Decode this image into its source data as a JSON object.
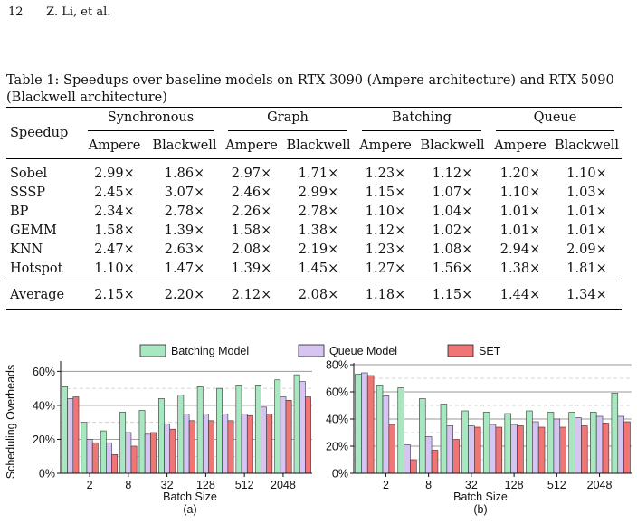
{
  "header": {
    "page_number": "12",
    "authors": "Z. Li, et al."
  },
  "table": {
    "caption": "Table 1: Speedups over baseline models on RTX 3090 (Ampere architecture) and RTX 5090 (Blackwell architecture)",
    "corner": "Speedup",
    "groups": [
      "Synchronous",
      "Graph",
      "Batching",
      "Queue"
    ],
    "subheaders": [
      "Ampere",
      "Blackwell",
      "Ampere",
      "Blackwell",
      "Ampere",
      "Blackwell",
      "Ampere",
      "Blackwell"
    ],
    "rows": [
      {
        "name": "Sobel",
        "values": [
          "2.99×",
          "1.86×",
          "2.97×",
          "1.71×",
          "1.23×",
          "1.12×",
          "1.20×",
          "1.10×"
        ]
      },
      {
        "name": "SSSP",
        "values": [
          "2.45×",
          "3.07×",
          "2.46×",
          "2.99×",
          "1.15×",
          "1.07×",
          "1.10×",
          "1.03×"
        ]
      },
      {
        "name": "BP",
        "values": [
          "2.34×",
          "2.78×",
          "2.26×",
          "2.78×",
          "1.10×",
          "1.04×",
          "1.01×",
          "1.01×"
        ]
      },
      {
        "name": "GEMM",
        "values": [
          "1.58×",
          "1.39×",
          "1.58×",
          "1.38×",
          "1.12×",
          "1.02×",
          "1.01×",
          "1.01×"
        ]
      },
      {
        "name": "KNN",
        "values": [
          "2.47×",
          "2.63×",
          "2.08×",
          "2.19×",
          "1.23×",
          "1.08×",
          "2.94×",
          "2.09×"
        ]
      },
      {
        "name": "Hotspot",
        "values": [
          "1.10×",
          "1.47×",
          "1.39×",
          "1.45×",
          "1.27×",
          "1.56×",
          "1.38×",
          "1.81×"
        ]
      }
    ],
    "average": {
      "name": "Average",
      "values": [
        "2.15×",
        "2.20×",
        "2.12×",
        "2.08×",
        "1.18×",
        "1.15×",
        "1.44×",
        "1.34×"
      ]
    }
  },
  "chart_data": [
    {
      "type": "bar",
      "panel_label": "(a)",
      "xlabel": "Batch Size",
      "ylabel": "Scheduling Overheads",
      "ylim": [
        0,
        65
      ],
      "yticks": [
        "0%",
        "20%",
        "40%",
        "60%"
      ],
      "categories": [
        "1",
        "2",
        "4",
        "8",
        "16",
        "32",
        "64",
        "128",
        "256",
        "512",
        "1024",
        "2048",
        "4096"
      ],
      "xtick_labels": [
        "2",
        "8",
        "32",
        "128",
        "512",
        "2048"
      ],
      "series": [
        {
          "name": "Batching Model",
          "color": "#a8e8c0",
          "values": [
            51,
            30,
            25,
            36,
            37,
            44,
            46,
            51,
            50,
            52,
            52,
            55,
            58
          ]
        },
        {
          "name": "Queue Model",
          "color": "#d6c4f2",
          "values": [
            44,
            20,
            18,
            24,
            23,
            29,
            35,
            35,
            35,
            35,
            39,
            45,
            54
          ]
        },
        {
          "name": "SET",
          "color": "#f07676",
          "values": [
            45,
            18,
            11,
            16,
            24,
            26,
            31,
            31,
            31,
            34,
            35,
            43,
            45
          ]
        }
      ]
    },
    {
      "type": "bar",
      "panel_label": "(b)",
      "xlabel": "Batch Size",
      "ylim": [
        0,
        80
      ],
      "yticks": [
        "0%",
        "20%",
        "40%",
        "60%",
        "80%"
      ],
      "categories": [
        "1",
        "2",
        "4",
        "8",
        "16",
        "32",
        "64",
        "128",
        "256",
        "512",
        "1024",
        "2048",
        "4096"
      ],
      "xtick_labels": [
        "2",
        "8",
        "32",
        "128",
        "512",
        "2048"
      ],
      "series": [
        {
          "name": "Batching Model",
          "color": "#a8e8c0",
          "values": [
            73,
            65,
            63,
            55,
            51,
            46,
            45,
            44,
            46,
            45,
            45,
            45,
            59
          ]
        },
        {
          "name": "Queue Model",
          "color": "#d6c4f2",
          "values": [
            74,
            57,
            21,
            27,
            35,
            35,
            36,
            36,
            38,
            40,
            41,
            42,
            42
          ]
        },
        {
          "name": "SET",
          "color": "#f07676",
          "values": [
            72,
            36,
            10,
            17,
            25,
            34,
            34,
            35,
            34,
            34,
            35,
            37,
            38
          ]
        }
      ]
    }
  ]
}
